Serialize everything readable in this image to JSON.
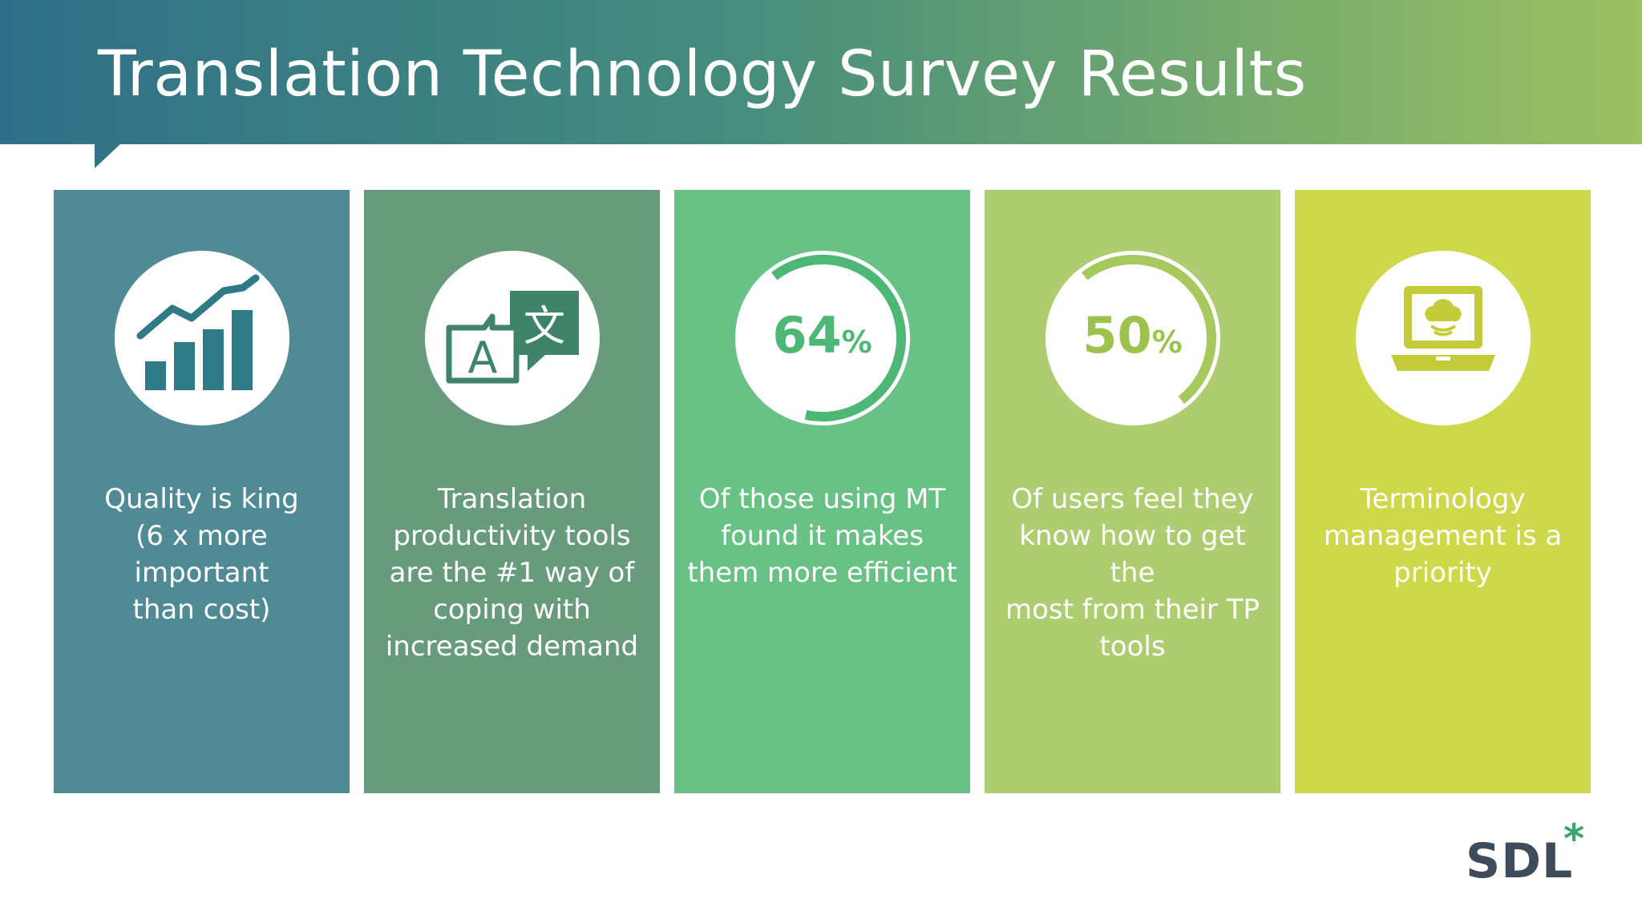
{
  "header": {
    "title": "Translation Technology Survey Results"
  },
  "colors": {
    "panel_1": "#508b95",
    "panel_2": "#689b7b",
    "panel_3": "#68c286",
    "panel_4": "#aecd70",
    "panel_5": "#cdd84a",
    "logo_text": "#3d4b5a",
    "logo_star": "#3aa66b"
  },
  "cards": [
    {
      "icon": "bar-chart-trend-icon",
      "text": "Quality is king\n(6 x more important\nthan cost)"
    },
    {
      "icon": "translate-icon",
      "text": "Translation\nproductivity tools\nare the #1 way of\ncoping with\nincreased demand"
    },
    {
      "icon": "gauge-icon",
      "stat_value": "64",
      "stat_unit": "%",
      "gauge_fraction": 0.64,
      "text": "Of those using MT\nfound it makes\nthem more efficient"
    },
    {
      "icon": "gauge-icon",
      "stat_value": "50",
      "stat_unit": "%",
      "gauge_fraction": 0.5,
      "text": "Of users feel they\nknow how to get the\nmost from their TP\ntools"
    },
    {
      "icon": "laptop-cloud-icon",
      "text": "Terminology\nmanagement is a\npriority"
    }
  ],
  "logo": {
    "text": "SDL",
    "mark": "*"
  }
}
